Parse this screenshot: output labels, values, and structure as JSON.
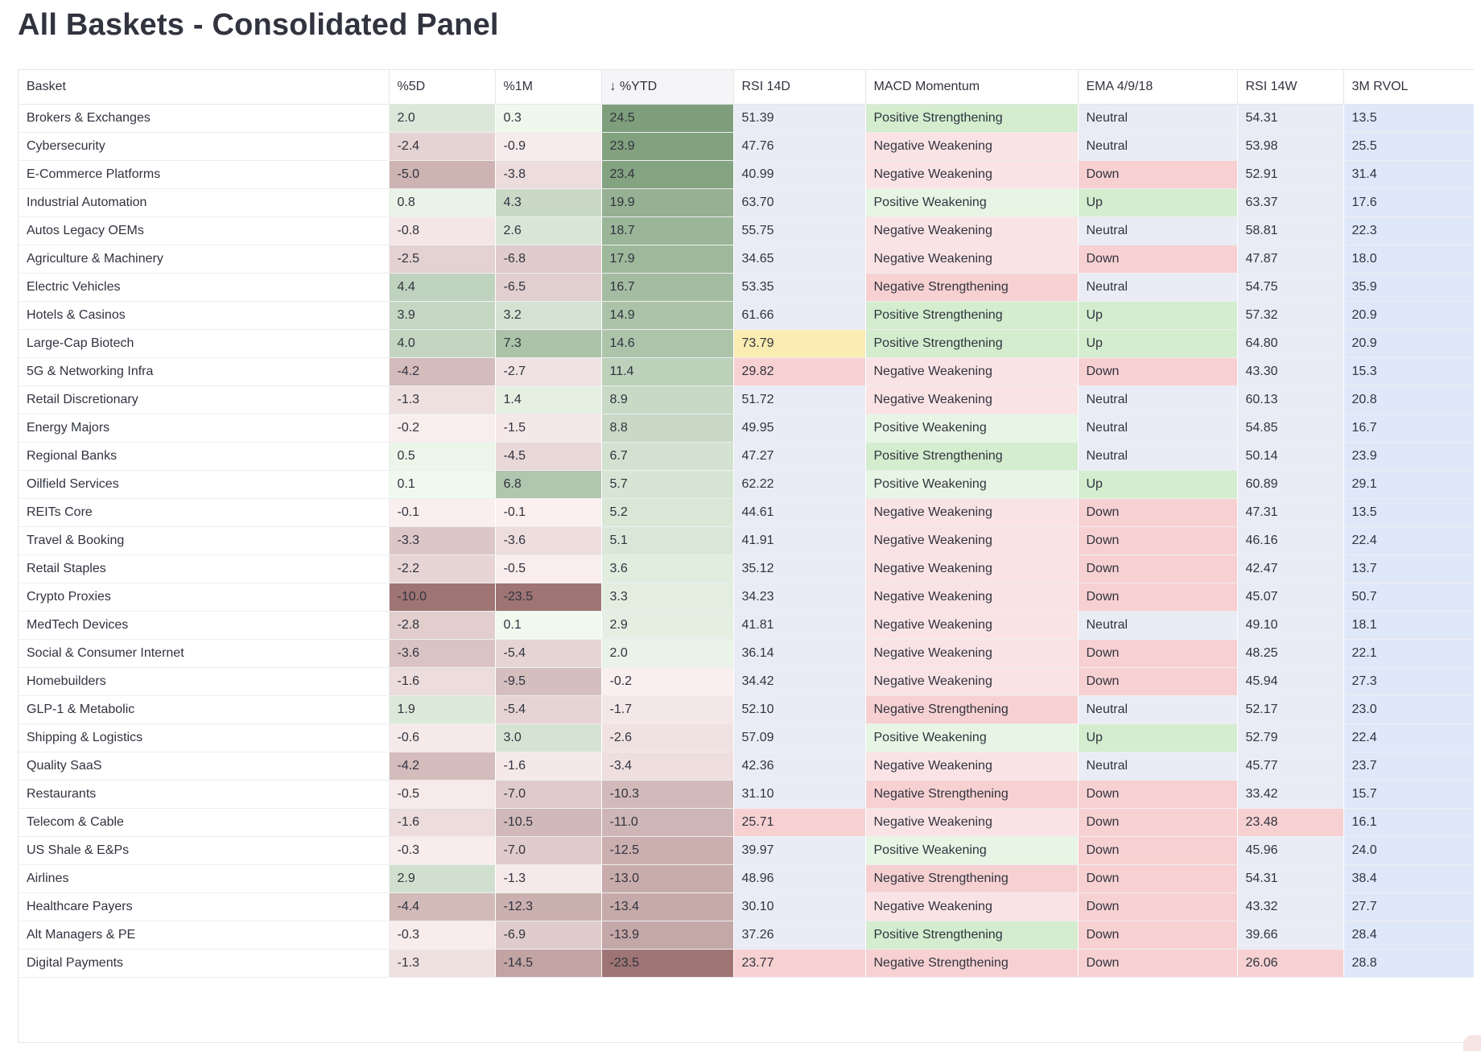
{
  "title": "All Baskets - Consolidated Panel",
  "table": {
    "columns": [
      "Basket",
      "%5D",
      "%1M",
      "↓ %YTD",
      "RSI 14D",
      "MACD Momentum",
      "EMA 4/9/18",
      "RSI 14W",
      "3M RVOL"
    ],
    "sort_column": "%YTD",
    "sort_direction": "descending",
    "rows": [
      {
        "basket": "Brokers & Exchanges",
        "d5": "2.0",
        "m1": "0.3",
        "ytd": "24.5",
        "rsi14d": "51.39",
        "macd": "Positive Strengthening",
        "ema": "Neutral",
        "rsi14w": "54.31",
        "rvol": "13.5"
      },
      {
        "basket": "Cybersecurity",
        "d5": "-2.4",
        "m1": "-0.9",
        "ytd": "23.9",
        "rsi14d": "47.76",
        "macd": "Negative Weakening",
        "ema": "Neutral",
        "rsi14w": "53.98",
        "rvol": "25.5"
      },
      {
        "basket": "E-Commerce Platforms",
        "d5": "-5.0",
        "m1": "-3.8",
        "ytd": "23.4",
        "rsi14d": "40.99",
        "macd": "Negative Weakening",
        "ema": "Down",
        "rsi14w": "52.91",
        "rvol": "31.4"
      },
      {
        "basket": "Industrial Automation",
        "d5": "0.8",
        "m1": "4.3",
        "ytd": "19.9",
        "rsi14d": "63.70",
        "macd": "Positive Weakening",
        "ema": "Up",
        "rsi14w": "63.37",
        "rvol": "17.6"
      },
      {
        "basket": "Autos Legacy OEMs",
        "d5": "-0.8",
        "m1": "2.6",
        "ytd": "18.7",
        "rsi14d": "55.75",
        "macd": "Negative Weakening",
        "ema": "Neutral",
        "rsi14w": "58.81",
        "rvol": "22.3"
      },
      {
        "basket": "Agriculture & Machinery",
        "d5": "-2.5",
        "m1": "-6.8",
        "ytd": "17.9",
        "rsi14d": "34.65",
        "macd": "Negative Weakening",
        "ema": "Down",
        "rsi14w": "47.87",
        "rvol": "18.0"
      },
      {
        "basket": "Electric Vehicles",
        "d5": "4.4",
        "m1": "-6.5",
        "ytd": "16.7",
        "rsi14d": "53.35",
        "macd": "Negative Strengthening",
        "ema": "Neutral",
        "rsi14w": "54.75",
        "rvol": "35.9"
      },
      {
        "basket": "Hotels & Casinos",
        "d5": "3.9",
        "m1": "3.2",
        "ytd": "14.9",
        "rsi14d": "61.66",
        "macd": "Positive Strengthening",
        "ema": "Up",
        "rsi14w": "57.32",
        "rvol": "20.9"
      },
      {
        "basket": "Large-Cap Biotech",
        "d5": "4.0",
        "m1": "7.3",
        "ytd": "14.6",
        "rsi14d": "73.79",
        "macd": "Positive Strengthening",
        "ema": "Up",
        "rsi14w": "64.80",
        "rvol": "20.9"
      },
      {
        "basket": "5G & Networking Infra",
        "d5": "-4.2",
        "m1": "-2.7",
        "ytd": "11.4",
        "rsi14d": "29.82",
        "macd": "Negative Weakening",
        "ema": "Down",
        "rsi14w": "43.30",
        "rvol": "15.3"
      },
      {
        "basket": "Retail Discretionary",
        "d5": "-1.3",
        "m1": "1.4",
        "ytd": "8.9",
        "rsi14d": "51.72",
        "macd": "Negative Weakening",
        "ema": "Neutral",
        "rsi14w": "60.13",
        "rvol": "20.8"
      },
      {
        "basket": "Energy Majors",
        "d5": "-0.2",
        "m1": "-1.5",
        "ytd": "8.8",
        "rsi14d": "49.95",
        "macd": "Positive Weakening",
        "ema": "Neutral",
        "rsi14w": "54.85",
        "rvol": "16.7"
      },
      {
        "basket": "Regional Banks",
        "d5": "0.5",
        "m1": "-4.5",
        "ytd": "6.7",
        "rsi14d": "47.27",
        "macd": "Positive Strengthening",
        "ema": "Neutral",
        "rsi14w": "50.14",
        "rvol": "23.9"
      },
      {
        "basket": "Oilfield Services",
        "d5": "0.1",
        "m1": "6.8",
        "ytd": "5.7",
        "rsi14d": "62.22",
        "macd": "Positive Weakening",
        "ema": "Up",
        "rsi14w": "60.89",
        "rvol": "29.1"
      },
      {
        "basket": "REITs Core",
        "d5": "-0.1",
        "m1": "-0.1",
        "ytd": "5.2",
        "rsi14d": "44.61",
        "macd": "Negative Weakening",
        "ema": "Down",
        "rsi14w": "47.31",
        "rvol": "13.5"
      },
      {
        "basket": "Travel & Booking",
        "d5": "-3.3",
        "m1": "-3.6",
        "ytd": "5.1",
        "rsi14d": "41.91",
        "macd": "Negative Weakening",
        "ema": "Down",
        "rsi14w": "46.16",
        "rvol": "22.4"
      },
      {
        "basket": "Retail Staples",
        "d5": "-2.2",
        "m1": "-0.5",
        "ytd": "3.6",
        "rsi14d": "35.12",
        "macd": "Negative Weakening",
        "ema": "Down",
        "rsi14w": "42.47",
        "rvol": "13.7"
      },
      {
        "basket": "Crypto Proxies",
        "d5": "-10.0",
        "m1": "-23.5",
        "ytd": "3.3",
        "rsi14d": "34.23",
        "macd": "Negative Weakening",
        "ema": "Down",
        "rsi14w": "45.07",
        "rvol": "50.7"
      },
      {
        "basket": "MedTech Devices",
        "d5": "-2.8",
        "m1": "0.1",
        "ytd": "2.9",
        "rsi14d": "41.81",
        "macd": "Negative Weakening",
        "ema": "Neutral",
        "rsi14w": "49.10",
        "rvol": "18.1"
      },
      {
        "basket": "Social & Consumer Internet",
        "d5": "-3.6",
        "m1": "-5.4",
        "ytd": "2.0",
        "rsi14d": "36.14",
        "macd": "Negative Weakening",
        "ema": "Down",
        "rsi14w": "48.25",
        "rvol": "22.1"
      },
      {
        "basket": "Homebuilders",
        "d5": "-1.6",
        "m1": "-9.5",
        "ytd": "-0.2",
        "rsi14d": "34.42",
        "macd": "Negative Weakening",
        "ema": "Down",
        "rsi14w": "45.94",
        "rvol": "27.3"
      },
      {
        "basket": "GLP-1 & Metabolic",
        "d5": "1.9",
        "m1": "-5.4",
        "ytd": "-1.7",
        "rsi14d": "52.10",
        "macd": "Negative Strengthening",
        "ema": "Neutral",
        "rsi14w": "52.17",
        "rvol": "23.0"
      },
      {
        "basket": "Shipping & Logistics",
        "d5": "-0.6",
        "m1": "3.0",
        "ytd": "-2.6",
        "rsi14d": "57.09",
        "macd": "Positive Weakening",
        "ema": "Up",
        "rsi14w": "52.79",
        "rvol": "22.4"
      },
      {
        "basket": "Quality SaaS",
        "d5": "-4.2",
        "m1": "-1.6",
        "ytd": "-3.4",
        "rsi14d": "42.36",
        "macd": "Negative Weakening",
        "ema": "Neutral",
        "rsi14w": "45.77",
        "rvol": "23.7"
      },
      {
        "basket": "Restaurants",
        "d5": "-0.5",
        "m1": "-7.0",
        "ytd": "-10.3",
        "rsi14d": "31.10",
        "macd": "Negative Strengthening",
        "ema": "Down",
        "rsi14w": "33.42",
        "rvol": "15.7"
      },
      {
        "basket": "Telecom & Cable",
        "d5": "-1.6",
        "m1": "-10.5",
        "ytd": "-11.0",
        "rsi14d": "25.71",
        "macd": "Negative Weakening",
        "ema": "Down",
        "rsi14w": "23.48",
        "rvol": "16.1"
      },
      {
        "basket": "US Shale & E&Ps",
        "d5": "-0.3",
        "m1": "-7.0",
        "ytd": "-12.5",
        "rsi14d": "39.97",
        "macd": "Positive Weakening",
        "ema": "Down",
        "rsi14w": "45.96",
        "rvol": "24.0"
      },
      {
        "basket": "Airlines",
        "d5": "2.9",
        "m1": "-1.3",
        "ytd": "-13.0",
        "rsi14d": "48.96",
        "macd": "Negative Strengthening",
        "ema": "Down",
        "rsi14w": "54.31",
        "rvol": "38.4"
      },
      {
        "basket": "Healthcare Payers",
        "d5": "-4.4",
        "m1": "-12.3",
        "ytd": "-13.4",
        "rsi14d": "30.10",
        "macd": "Negative Weakening",
        "ema": "Down",
        "rsi14w": "43.32",
        "rvol": "27.7"
      },
      {
        "basket": "Alt Managers & PE",
        "d5": "-0.3",
        "m1": "-6.9",
        "ytd": "-13.9",
        "rsi14d": "37.26",
        "macd": "Positive Strengthening",
        "ema": "Down",
        "rsi14w": "39.66",
        "rvol": "28.4"
      },
      {
        "basket": "Digital Payments",
        "d5": "-1.3",
        "m1": "-14.5",
        "ytd": "-23.5",
        "rsi14d": "23.77",
        "macd": "Negative Strengthening",
        "ema": "Down",
        "rsi14w": "26.06",
        "rvol": "28.8"
      }
    ]
  },
  "colors": {
    "macd": {
      "Positive Strengthening": "#d3edce",
      "Positive Weakening": "#e7f5e4",
      "Negative Weakening": "#fae3e4",
      "Negative Strengthening": "#f7d1d2"
    },
    "ema": {
      "Up": "#d3edce",
      "Down": "#f7d1d2",
      "Neutral": "#e9ecf5"
    },
    "rsi_overbought": "#fbecb2",
    "rsi_oversold": "#f7d1d2",
    "rsi_normal": "#e9ecf5",
    "rvol": "#dfe8f9"
  }
}
